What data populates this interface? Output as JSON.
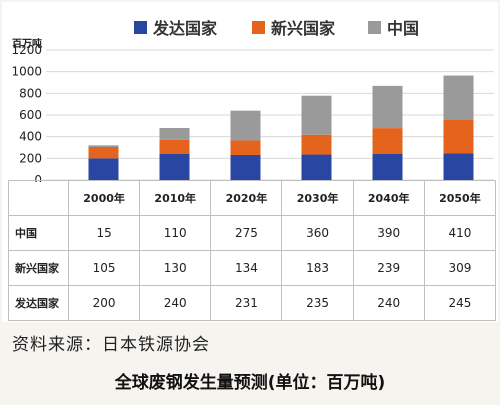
{
  "chart_data": {
    "type": "bar",
    "stacked": true,
    "categories": [
      "2000年",
      "2010年",
      "2020年",
      "2030年",
      "2040年",
      "2050年"
    ],
    "series": [
      {
        "name": "发达国家",
        "values": [
          200,
          240,
          231,
          235,
          240,
          245
        ],
        "color": "#2a46a3"
      },
      {
        "name": "新兴国家",
        "values": [
          105,
          130,
          134,
          183,
          239,
          309
        ],
        "color": "#e4641e"
      },
      {
        "name": "中国",
        "values": [
          15,
          110,
          275,
          360,
          390,
          410
        ],
        "color": "#9a9a9a"
      }
    ],
    "ylabel": "百万吨",
    "ylim": [
      0,
      1200
    ],
    "yticks": [
      "0",
      "200",
      "400",
      "600",
      "800",
      "1000",
      "1200"
    ],
    "legend_position": "top",
    "grid": true,
    "table_rows": [
      {
        "label": "中国",
        "values": [
          "15",
          "110",
          "275",
          "360",
          "390",
          "410"
        ]
      },
      {
        "label": "新兴国家",
        "values": [
          "105",
          "130",
          "134",
          "183",
          "239",
          "309"
        ]
      },
      {
        "label": "发达国家",
        "values": [
          "200",
          "240",
          "231",
          "235",
          "240",
          "245"
        ]
      }
    ]
  },
  "source": "资料来源：日本铁源协会",
  "caption": "全球废钢发生量预测(单位：百万吨)"
}
